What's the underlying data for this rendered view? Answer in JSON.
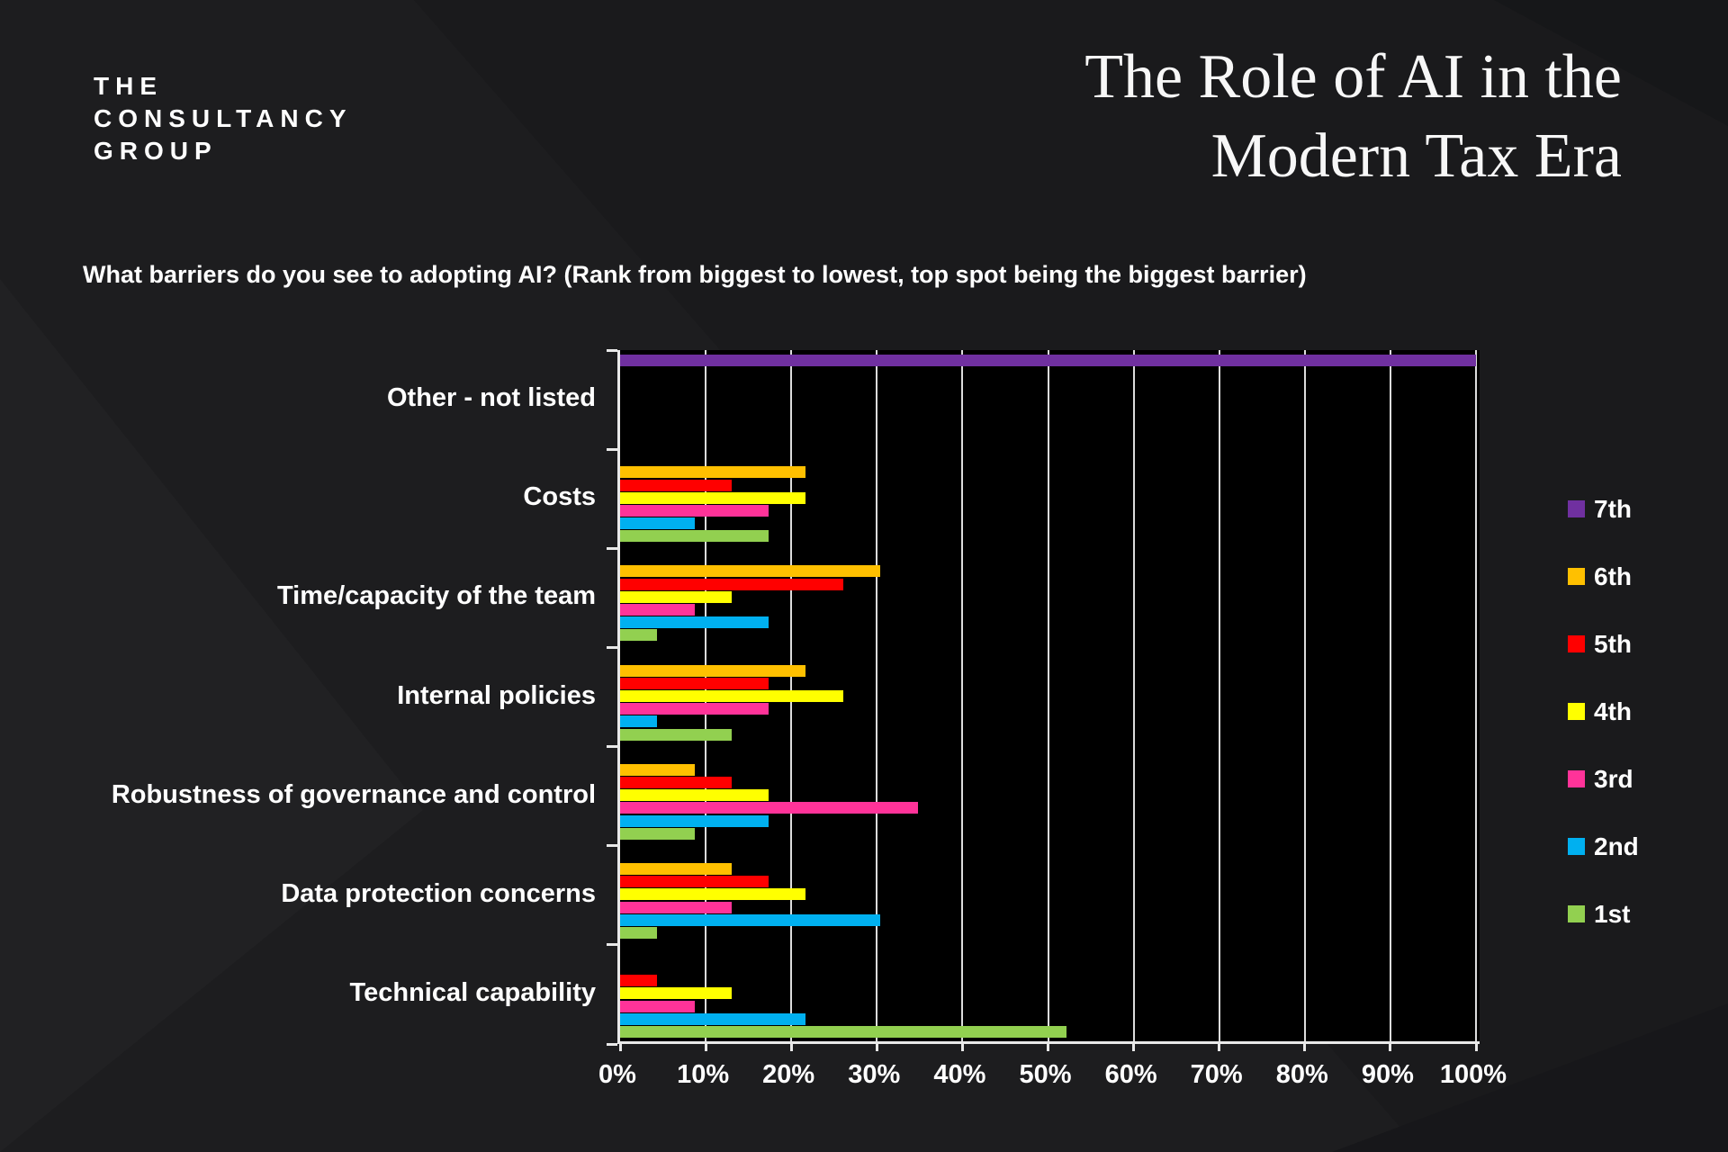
{
  "brand": {
    "line1": "THE",
    "line2": "CONSULTANCY",
    "line3": "GROUP"
  },
  "header": {
    "title_line1": "The Role of AI in the",
    "title_line2": "Modern Tax Era"
  },
  "question": "What barriers do you see to adopting AI? (Rank from biggest to lowest, top spot being the biggest barrier)",
  "chart_data": {
    "type": "bar",
    "orientation": "horizontal",
    "title": "",
    "categories": [
      "Other - not listed",
      "Costs",
      "Time/capacity of the team",
      "Internal policies",
      "Robustness of governance and control",
      "Data protection concerns",
      "Technical capability"
    ],
    "series": [
      {
        "name": "7th",
        "color": "#7030A0",
        "values": [
          100,
          0,
          0,
          0,
          0,
          0,
          0
        ]
      },
      {
        "name": "6th",
        "color": "#FFC000",
        "values": [
          0,
          21.7,
          30.4,
          21.7,
          8.7,
          13,
          0
        ]
      },
      {
        "name": "5th",
        "color": "#FF0000",
        "values": [
          0,
          13,
          26.1,
          17.4,
          13,
          17.4,
          4.3
        ]
      },
      {
        "name": "4th",
        "color": "#FFFF00",
        "values": [
          0,
          21.7,
          13,
          26.1,
          17.4,
          21.7,
          13
        ]
      },
      {
        "name": "3rd",
        "color": "#FF3399",
        "values": [
          0,
          17.4,
          8.7,
          17.4,
          34.8,
          13,
          8.7
        ]
      },
      {
        "name": "2nd",
        "color": "#00B0F0",
        "values": [
          0,
          8.7,
          17.4,
          4.3,
          17.4,
          30.4,
          21.7
        ]
      },
      {
        "name": "1st",
        "color": "#92D050",
        "values": [
          0,
          17.4,
          4.3,
          13,
          8.7,
          4.3,
          52.2
        ]
      }
    ],
    "x_ticks": [
      "0%",
      "10%",
      "20%",
      "30%",
      "40%",
      "50%",
      "60%",
      "70%",
      "80%",
      "90%",
      "100%"
    ],
    "xlim": [
      0,
      100
    ],
    "grid": true,
    "legend_position": "right",
    "plot_background": "#000000",
    "gridline_color": "#DCDCDC",
    "axis_color": "#E9E9E9",
    "background_color": "#1D1D1F"
  }
}
